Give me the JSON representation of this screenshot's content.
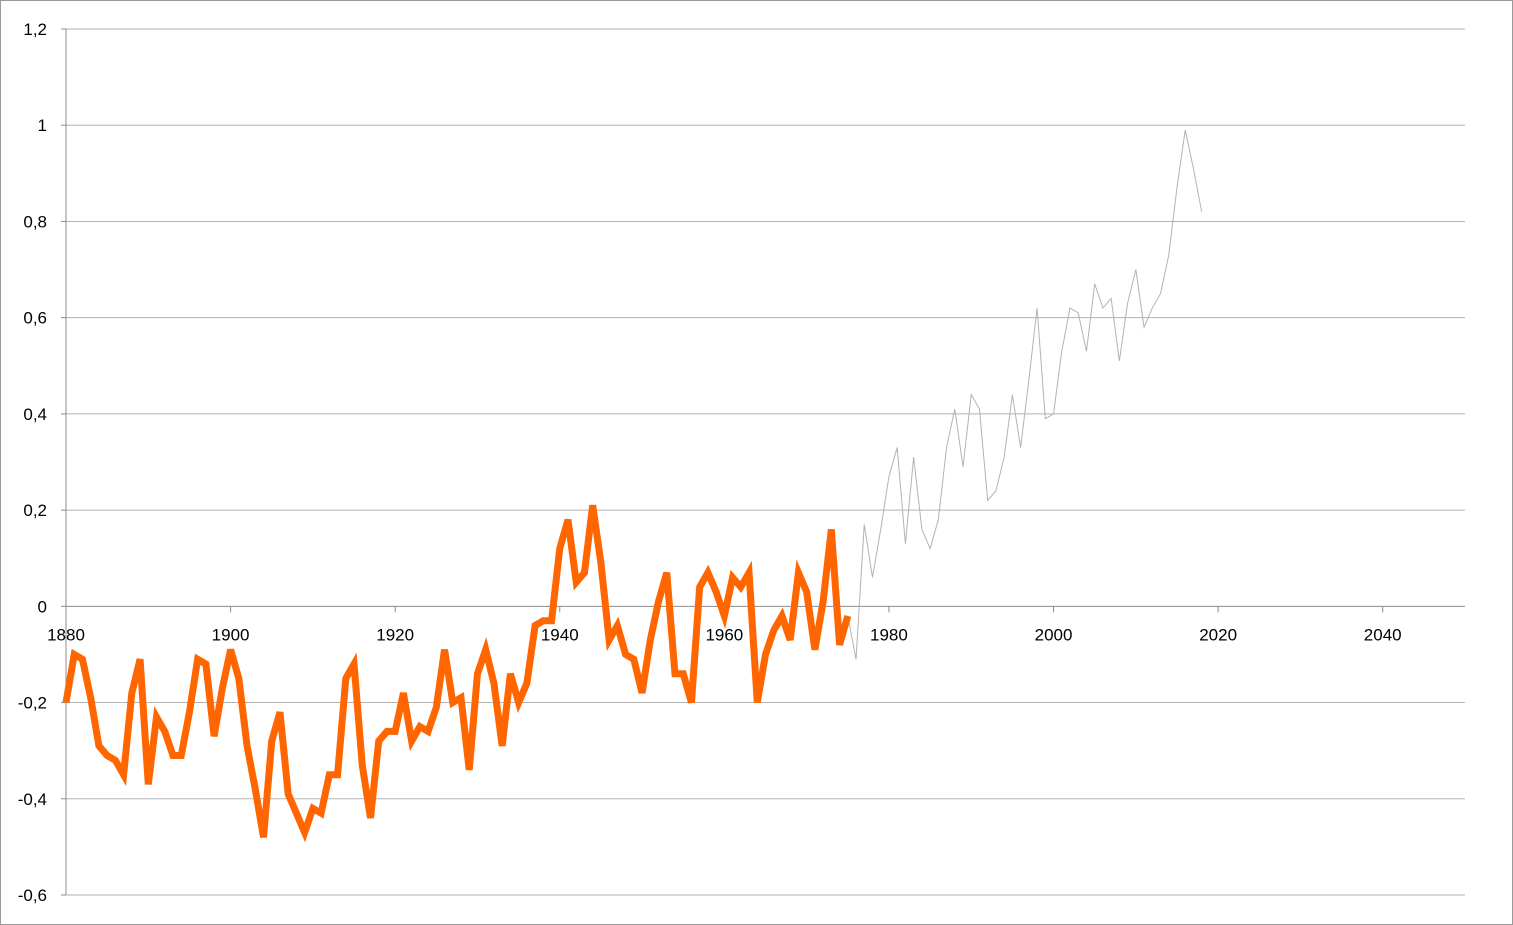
{
  "chart_data": {
    "type": "line",
    "title": "",
    "xlabel": "",
    "ylabel": "",
    "xlim": [
      1880,
      2050
    ],
    "ylim": [
      -0.6,
      1.2
    ],
    "x_ticks": [
      1880,
      1900,
      1920,
      1940,
      1960,
      1980,
      2000,
      2020,
      2040
    ],
    "y_ticks": [
      -0.6,
      -0.4,
      -0.2,
      0,
      0.2,
      0.4,
      0.6,
      0.8,
      1,
      1.2
    ],
    "x_tick_labels": [
      "1880",
      "1900",
      "1920",
      "1940",
      "1960",
      "1980",
      "2000",
      "2020",
      "2040"
    ],
    "y_tick_labels": [
      "-0,6",
      "-0,4",
      "-0,2",
      "0",
      "0,2",
      "0,4",
      "0,6",
      "0,8",
      "1",
      "1,2"
    ],
    "grid": "horizontal",
    "legend": "none",
    "series": [
      {
        "color": "#ff6600",
        "x": [
          1880,
          1881,
          1882,
          1883,
          1884,
          1885,
          1886,
          1887,
          1888,
          1889,
          1890,
          1891,
          1892,
          1893,
          1894,
          1895,
          1896,
          1897,
          1898,
          1899,
          1900,
          1901,
          1902,
          1903,
          1904,
          1905,
          1906,
          1907,
          1908,
          1909,
          1910,
          1911,
          1912,
          1913,
          1914,
          1915,
          1916,
          1917,
          1918,
          1919,
          1920,
          1921,
          1922,
          1923,
          1924,
          1925,
          1926,
          1927,
          1928,
          1929,
          1930,
          1931,
          1932,
          1933,
          1934,
          1935,
          1936,
          1937,
          1938,
          1939,
          1940,
          1941,
          1942,
          1943,
          1944,
          1945,
          1946,
          1947,
          1948,
          1949,
          1950,
          1951,
          1952,
          1953,
          1954,
          1955,
          1956,
          1957,
          1958,
          1959,
          1960,
          1961,
          1962,
          1963,
          1964,
          1965,
          1966,
          1967,
          1968,
          1969,
          1970,
          1971,
          1972,
          1973,
          1974,
          1975
        ],
        "values": [
          -0.2,
          -0.1,
          -0.11,
          -0.19,
          -0.29,
          -0.31,
          -0.32,
          -0.35,
          -0.18,
          -0.11,
          -0.37,
          -0.23,
          -0.26,
          -0.31,
          -0.31,
          -0.22,
          -0.11,
          -0.12,
          -0.27,
          -0.17,
          -0.09,
          -0.15,
          -0.29,
          -0.38,
          -0.48,
          -0.28,
          -0.22,
          -0.39,
          -0.43,
          -0.47,
          -0.42,
          -0.43,
          -0.35,
          -0.35,
          -0.15,
          -0.12,
          -0.33,
          -0.44,
          -0.28,
          -0.26,
          -0.26,
          -0.18,
          -0.28,
          -0.25,
          -0.26,
          -0.21,
          -0.09,
          -0.2,
          -0.19,
          -0.34,
          -0.14,
          -0.09,
          -0.16,
          -0.29,
          -0.14,
          -0.2,
          -0.16,
          -0.04,
          -0.03,
          -0.03,
          0.12,
          0.18,
          0.05,
          0.07,
          0.21,
          0.09,
          -0.07,
          -0.04,
          -0.1,
          -0.11,
          -0.18,
          -0.07,
          0.01,
          0.07,
          -0.14,
          -0.14,
          -0.2,
          0.04,
          0.07,
          0.03,
          -0.02,
          0.06,
          0.04,
          0.07,
          -0.2,
          -0.1,
          -0.05,
          -0.02,
          -0.07,
          0.07,
          0.03,
          -0.09,
          0.01,
          0.16,
          -0.08,
          -0.02
        ]
      },
      {
        "color": "#b3b3b3",
        "x": [
          1975,
          1976,
          1977,
          1978,
          1979,
          1980,
          1981,
          1982,
          1983,
          1984,
          1985,
          1986,
          1987,
          1988,
          1989,
          1990,
          1991,
          1992,
          1993,
          1994,
          1995,
          1996,
          1997,
          1998,
          1999,
          2000,
          2001,
          2002,
          2003,
          2004,
          2005,
          2006,
          2007,
          2008,
          2009,
          2010,
          2011,
          2012,
          2013,
          2014,
          2015,
          2016,
          2017,
          2018
        ],
        "values": [
          -0.02,
          -0.11,
          0.17,
          0.06,
          0.16,
          0.27,
          0.33,
          0.13,
          0.31,
          0.16,
          0.12,
          0.18,
          0.33,
          0.41,
          0.29,
          0.44,
          0.41,
          0.22,
          0.24,
          0.31,
          0.44,
          0.33,
          0.47,
          0.62,
          0.39,
          0.4,
          0.53,
          0.62,
          0.61,
          0.53,
          0.67,
          0.62,
          0.64,
          0.51,
          0.63,
          0.7,
          0.58,
          0.62,
          0.65,
          0.73,
          0.87,
          0.99,
          0.91,
          0.82
        ]
      }
    ]
  }
}
